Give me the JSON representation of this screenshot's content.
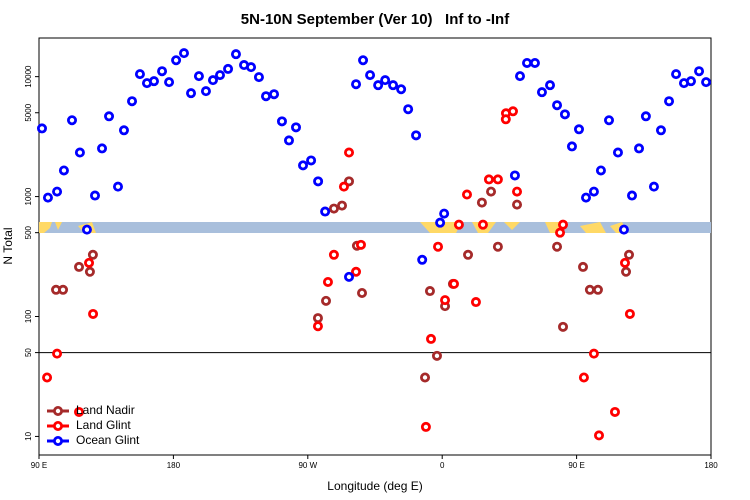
{
  "chart_data": {
    "type": "scatter",
    "title": "5N-10N September (Ver 10)   Inf to -Inf",
    "x_label": "Longitude (deg E)",
    "y_label": "N Total",
    "log_y": true,
    "xlim": [
      90,
      540
    ],
    "ylim": [
      7,
      21000
    ],
    "xticks": [
      {
        "value": 90,
        "label": "90 E"
      },
      180,
      {
        "value": 270,
        "label": "90 W"
      },
      {
        "value": 360,
        "label": "0"
      },
      {
        "value": 450,
        "label": "90 E"
      },
      {
        "value": 540,
        "label": "180"
      }
    ],
    "yticks": [
      10,
      50,
      100,
      500,
      1000,
      5000,
      10000
    ],
    "hline": 50,
    "legend": "bottom-left",
    "series": [
      {
        "name": "Land Nadir",
        "color": "#a52a2a",
        "x": [
          101.4,
          106.1,
          116.8,
          124.1,
          126.1,
          276.8,
          282.2,
          287.5,
          292.9,
          297.6,
          302.9,
          306.3,
          348.5,
          351.8,
          356.5,
          361.9,
          367.2,
          377.3,
          386.6,
          392.7,
          397.3,
          410.1,
          436.9,
          440.9,
          454.3,
          458.9,
          464.3,
          483.1,
          485.1
        ],
        "values": [
          167,
          167,
          259,
          236,
          327,
          97,
          135,
          794,
          841,
          1340,
          389,
          157,
          31,
          163,
          47,
          122,
          187,
          327,
          891,
          1100,
          382,
          857,
          382,
          82,
          259,
          167,
          167,
          236,
          327
        ]
      },
      {
        "name": "Land Glint",
        "color": "#ff0000",
        "x": [
          95.4,
          102.1,
          126.2,
          123.5,
          116.8,
          276.8,
          283.5,
          287.5,
          294.2,
          297.6,
          302.3,
          305.6,
          349.1,
          352.5,
          357.2,
          361.9,
          367.9,
          371.2,
          376.6,
          382.6,
          387.3,
          391.3,
          397.3,
          402.7,
          407.4,
          402.6,
          410.1,
          438.9,
          440.9,
          454.9,
          461.6,
          465.0,
          475.7,
          482.4,
          485.7
        ],
        "values": [
          31,
          49,
          105,
          280,
          16,
          83,
          194,
          327,
          1210,
          2330,
          236,
          396,
          12,
          65,
          382,
          137,
          187,
          583,
          1040,
          132,
          583,
          1390,
          1390,
          4950,
          5140,
          4410,
          1100,
          500,
          583,
          31,
          49,
          10.2,
          16,
          280,
          105
        ]
      },
      {
        "name": "Ocean Glint",
        "color": "#0000ff",
        "x": [
          92.0,
          96.0,
          102.1,
          106.7,
          112.1,
          117.4,
          122.1,
          127.5,
          132.2,
          136.9,
          142.9,
          146.9,
          152.3,
          157.6,
          162.3,
          167.0,
          172.4,
          177.1,
          181.8,
          187.1,
          191.8,
          197.1,
          201.8,
          206.5,
          211.2,
          216.6,
          221.9,
          227.3,
          232.0,
          237.3,
          242.0,
          247.4,
          252.7,
          257.4,
          262.1,
          266.8,
          272.2,
          276.9,
          281.6,
          297.6,
          302.3,
          307.0,
          311.7,
          317.1,
          321.8,
          327.1,
          332.5,
          337.2,
          342.5,
          346.6,
          358.6,
          361.3,
          408.7,
          412.1,
          416.8,
          422.1,
          426.8,
          432.2,
          436.9,
          442.2,
          446.9,
          451.6,
          456.3,
          461.6,
          466.3,
          471.7,
          477.7,
          481.7,
          487.1,
          491.8,
          496.4,
          501.8,
          506.5,
          511.9,
          516.6,
          521.9,
          526.6,
          532.0,
          536.7
        ],
        "values": [
          3700,
          980,
          1100,
          1650,
          4330,
          2330,
          530,
          1020,
          2520,
          4670,
          1210,
          3570,
          6240,
          10500,
          8830,
          9170,
          11100,
          9000,
          13700,
          15700,
          7280,
          10100,
          7570,
          9350,
          10300,
          11600,
          15400,
          12500,
          12000,
          9910,
          6870,
          7140,
          4240,
          2940,
          3780,
          1820,
          2000,
          1340,
          750,
          214,
          8650,
          13700,
          10300,
          8490,
          9350,
          8490,
          7850,
          5350,
          3240,
          297,
          606,
          721,
          1500,
          10100,
          13000,
          13000,
          7420,
          8490,
          5780,
          4850,
          2620,
          3640,
          980,
          1100,
          1650,
          4330,
          2330,
          530,
          1020,
          2520,
          4670,
          1210,
          3570,
          6240,
          10500,
          8830,
          9170,
          11100,
          9000
        ]
      }
    ]
  }
}
